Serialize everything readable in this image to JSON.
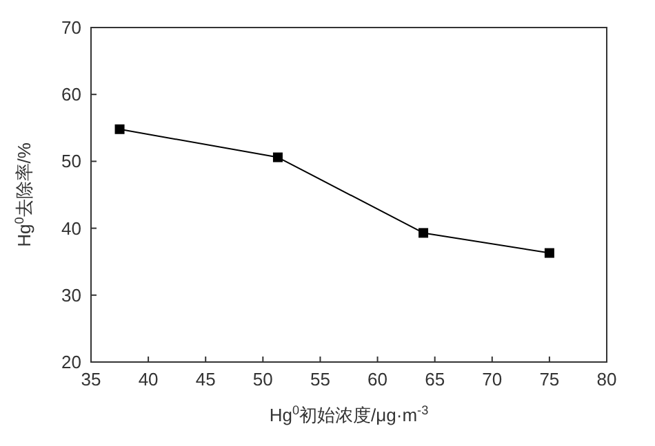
{
  "chart_data": {
    "type": "line",
    "xlabel": "Hg$^{0}$初始浓度/μg·m$^{-3}$",
    "ylabel": "Hg$^{0}$去除率/%",
    "x": [
      37.5,
      51.3,
      64,
      75
    ],
    "values": [
      54.8,
      50.6,
      39.3,
      36.3
    ],
    "color": "#000000",
    "marker": "square",
    "line_style": "solid",
    "grid": false,
    "xlim": [
      35,
      80
    ],
    "xticks": [
      35,
      40,
      45,
      50,
      55,
      60,
      65,
      70,
      75,
      80
    ],
    "ylim": [
      20,
      70
    ],
    "yticks": [
      20,
      30,
      40,
      50,
      60,
      70
    ]
  }
}
